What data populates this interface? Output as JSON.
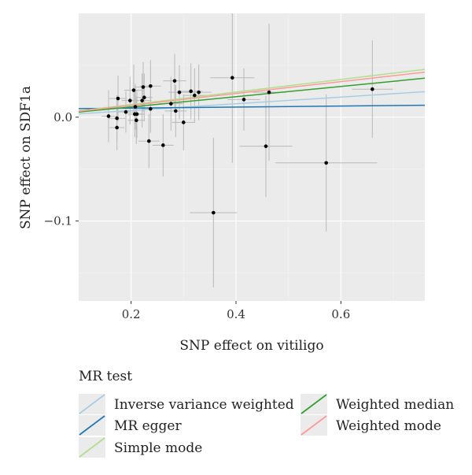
{
  "chart_data": {
    "type": "scatter",
    "title": "",
    "xlabel": "SNP effect on vitiligo",
    "ylabel": "SNP effect on SDF1a",
    "xlim": [
      0.1,
      0.76
    ],
    "ylim": [
      -0.177,
      0.1
    ],
    "x_ticks": [
      0.2,
      0.4,
      0.6
    ],
    "x_tick_labels": [
      "0.2",
      "0.4",
      "0.6"
    ],
    "y_ticks": [
      0.0,
      -0.1
    ],
    "y_tick_labels": [
      "0.0",
      "−0.1"
    ],
    "grid": true,
    "background": "#ebebeb",
    "points": [
      {
        "x": 0.157,
        "y": 0.001,
        "xerr": 0.013,
        "yerr": 0.025
      },
      {
        "x": 0.173,
        "y": -0.001,
        "xerr": 0.016,
        "yerr": 0.022
      },
      {
        "x": 0.173,
        "y": -0.01,
        "xerr": 0.014,
        "yerr": 0.022
      },
      {
        "x": 0.175,
        "y": 0.018,
        "xerr": 0.017,
        "yerr": 0.022
      },
      {
        "x": 0.19,
        "y": 0.005,
        "xerr": 0.015,
        "yerr": 0.02
      },
      {
        "x": 0.198,
        "y": 0.016,
        "xerr": 0.016,
        "yerr": 0.023
      },
      {
        "x": 0.205,
        "y": 0.026,
        "xerr": 0.018,
        "yerr": 0.025
      },
      {
        "x": 0.207,
        "y": 0.003,
        "xerr": 0.014,
        "yerr": 0.022
      },
      {
        "x": 0.208,
        "y": 0.01,
        "xerr": 0.015,
        "yerr": 0.022
      },
      {
        "x": 0.21,
        "y": -0.003,
        "xerr": 0.016,
        "yerr": 0.023
      },
      {
        "x": 0.211,
        "y": 0.003,
        "xerr": 0.015,
        "yerr": 0.023
      },
      {
        "x": 0.221,
        "y": 0.016,
        "xerr": 0.018,
        "yerr": 0.026
      },
      {
        "x": 0.223,
        "y": 0.029,
        "xerr": 0.017,
        "yerr": 0.024
      },
      {
        "x": 0.225,
        "y": 0.019,
        "xerr": 0.016,
        "yerr": 0.023
      },
      {
        "x": 0.234,
        "y": -0.023,
        "xerr": 0.02,
        "yerr": 0.026
      },
      {
        "x": 0.237,
        "y": 0.03,
        "xerr": 0.02,
        "yerr": 0.025
      },
      {
        "x": 0.237,
        "y": 0.008,
        "xerr": 0.016,
        "yerr": 0.023
      },
      {
        "x": 0.261,
        "y": -0.027,
        "xerr": 0.02,
        "yerr": 0.03
      },
      {
        "x": 0.276,
        "y": 0.013,
        "xerr": 0.023,
        "yerr": 0.026
      },
      {
        "x": 0.283,
        "y": 0.035,
        "xerr": 0.022,
        "yerr": 0.026
      },
      {
        "x": 0.285,
        "y": 0.006,
        "xerr": 0.021,
        "yerr": 0.025
      },
      {
        "x": 0.292,
        "y": 0.024,
        "xerr": 0.021,
        "yerr": 0.026
      },
      {
        "x": 0.3,
        "y": -0.005,
        "xerr": 0.022,
        "yerr": 0.027
      },
      {
        "x": 0.314,
        "y": 0.025,
        "xerr": 0.022,
        "yerr": 0.027
      },
      {
        "x": 0.321,
        "y": 0.021,
        "xerr": 0.022,
        "yerr": 0.026
      },
      {
        "x": 0.329,
        "y": 0.024,
        "xerr": 0.024,
        "yerr": 0.027
      },
      {
        "x": 0.357,
        "y": -0.092,
        "xerr": 0.045,
        "yerr": 0.072
      },
      {
        "x": 0.393,
        "y": 0.038,
        "xerr": 0.042,
        "yerr": 0.082
      },
      {
        "x": 0.415,
        "y": 0.017,
        "xerr": 0.031,
        "yerr": 0.03
      },
      {
        "x": 0.457,
        "y": -0.028,
        "xerr": 0.05,
        "yerr": 0.049
      },
      {
        "x": 0.463,
        "y": 0.024,
        "xerr": 0.032,
        "yerr": 0.066
      },
      {
        "x": 0.572,
        "y": -0.044,
        "xerr": 0.097,
        "yerr": 0.066
      },
      {
        "x": 0.66,
        "y": 0.027,
        "xerr": 0.039,
        "yerr": 0.047
      }
    ],
    "lines": [
      {
        "name": "Inverse variance weighted",
        "color": "#a6cee3",
        "slope": 0.0323,
        "intercept": 0.0
      },
      {
        "name": "MR egger",
        "color": "#1f78b4",
        "slope": 0.0049,
        "intercept": 0.0078
      },
      {
        "name": "Simple mode",
        "color": "#b2df8a",
        "slope": 0.0606,
        "intercept": 0.0
      },
      {
        "name": "Weighted median",
        "color": "#33a02c",
        "slope": 0.0494,
        "intercept": 0.0
      },
      {
        "name": "Weighted mode",
        "color": "#fb9a99",
        "slope": 0.0571,
        "intercept": 0.0
      }
    ],
    "legend": {
      "title": "MR test",
      "placement": "bottom",
      "entries": [
        {
          "label": "Inverse variance weighted",
          "color": "#a6cee3"
        },
        {
          "label": "MR egger",
          "color": "#1f78b4"
        },
        {
          "label": "Simple mode",
          "color": "#b2df8a"
        },
        {
          "label": "Weighted median",
          "color": "#33a02c"
        },
        {
          "label": "Weighted mode",
          "color": "#fb9a99"
        }
      ]
    }
  }
}
